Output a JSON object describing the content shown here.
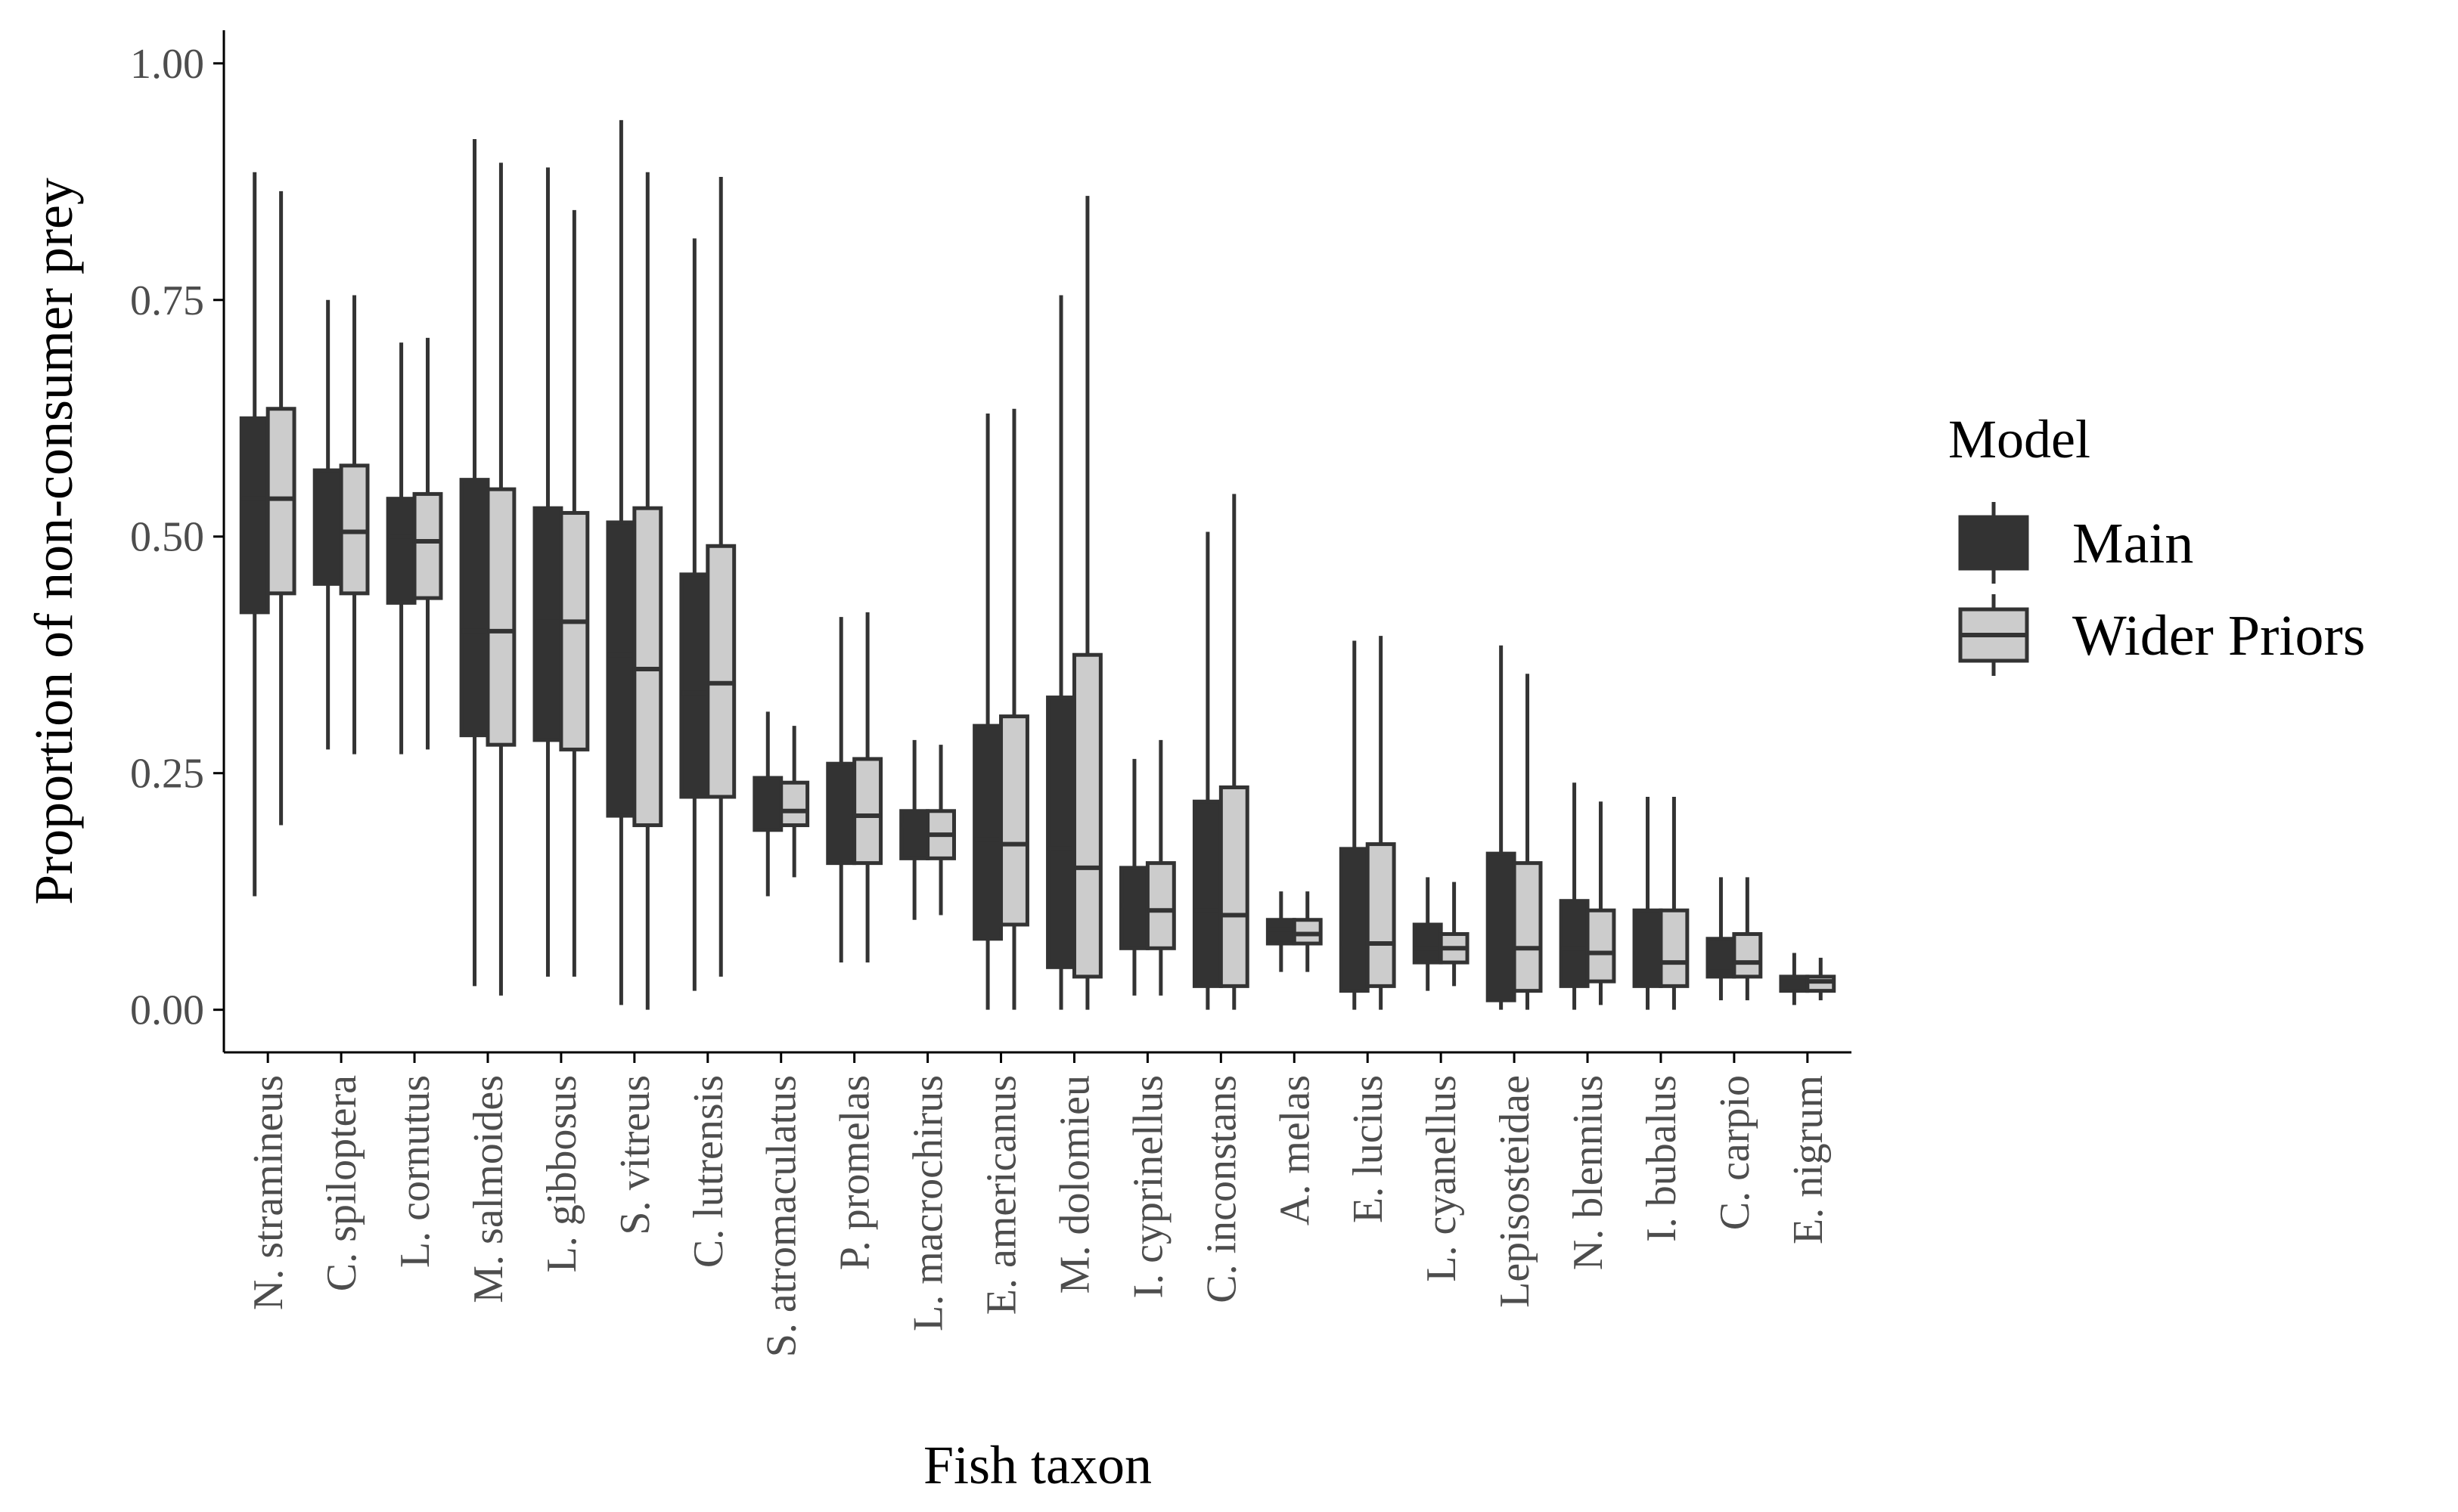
{
  "chart_data": {
    "type": "box",
    "xlabel": "Fish taxon",
    "ylabel": "Proportion of non-consumer prey",
    "ylim": [
      -0.045,
      1.035
    ],
    "yticks": [
      "0.00",
      "0.25",
      "0.50",
      "0.75",
      "1.00"
    ],
    "ytick_values": [
      0,
      0.25,
      0.5,
      0.75,
      1.0
    ],
    "legend": {
      "title": "Model",
      "position": "right"
    },
    "colors": {
      "Main": "#333333",
      "Wider Priors": "#cccccc",
      "outline": "#333333"
    },
    "categories": [
      "N. stramineus",
      "C. spiloptera",
      "L. cornutus",
      "M. salmoides",
      "L. gibbosus",
      "S. vitreus",
      "C. lutrensis",
      "S. atromaculatus",
      "P. promelas",
      "L. macrochirus",
      "E. americanus",
      "M. dolomieu",
      "I. cyprinellus",
      "C. inconstans",
      "A. melas",
      "E. lucius",
      "L. cyanellus",
      "Lepisosteidae",
      "N. blennius",
      "I. bubalus",
      "C. carpio",
      "E. nigrum"
    ],
    "series": [
      {
        "name": "Main",
        "boxes": [
          {
            "min": 0.12,
            "q1": 0.42,
            "median": 0.54,
            "q3": 0.625,
            "max": 0.885
          },
          {
            "min": 0.275,
            "q1": 0.45,
            "median": 0.505,
            "q3": 0.57,
            "max": 0.75
          },
          {
            "min": 0.27,
            "q1": 0.43,
            "median": 0.5,
            "q3": 0.54,
            "max": 0.705
          },
          {
            "min": 0.025,
            "q1": 0.29,
            "median": 0.4,
            "q3": 0.56,
            "max": 0.92
          },
          {
            "min": 0.035,
            "q1": 0.285,
            "median": 0.41,
            "q3": 0.53,
            "max": 0.89
          },
          {
            "min": 0.005,
            "q1": 0.205,
            "median": 0.375,
            "q3": 0.515,
            "max": 0.94
          },
          {
            "min": 0.02,
            "q1": 0.225,
            "median": 0.335,
            "q3": 0.46,
            "max": 0.815
          },
          {
            "min": 0.12,
            "q1": 0.19,
            "median": 0.225,
            "q3": 0.245,
            "max": 0.315
          },
          {
            "min": 0.05,
            "q1": 0.155,
            "median": 0.205,
            "q3": 0.26,
            "max": 0.415
          },
          {
            "min": 0.095,
            "q1": 0.16,
            "median": 0.195,
            "q3": 0.21,
            "max": 0.285
          },
          {
            "min": 0.0,
            "q1": 0.075,
            "median": 0.18,
            "q3": 0.3,
            "max": 0.63
          },
          {
            "min": 0.0,
            "q1": 0.045,
            "median": 0.17,
            "q3": 0.33,
            "max": 0.755
          },
          {
            "min": 0.015,
            "q1": 0.065,
            "median": 0.11,
            "q3": 0.15,
            "max": 0.265
          },
          {
            "min": 0.0,
            "q1": 0.025,
            "median": 0.105,
            "q3": 0.22,
            "max": 0.505
          },
          {
            "min": 0.04,
            "q1": 0.07,
            "median": 0.085,
            "q3": 0.095,
            "max": 0.125
          },
          {
            "min": 0.0,
            "q1": 0.02,
            "median": 0.07,
            "q3": 0.17,
            "max": 0.39
          },
          {
            "min": 0.02,
            "q1": 0.05,
            "median": 0.065,
            "q3": 0.09,
            "max": 0.14
          },
          {
            "min": 0.0,
            "q1": 0.01,
            "median": 0.06,
            "q3": 0.165,
            "max": 0.385
          },
          {
            "min": 0.0,
            "q1": 0.025,
            "median": 0.065,
            "q3": 0.115,
            "max": 0.24
          },
          {
            "min": 0.0,
            "q1": 0.025,
            "median": 0.06,
            "q3": 0.105,
            "max": 0.225
          },
          {
            "min": 0.01,
            "q1": 0.035,
            "median": 0.045,
            "q3": 0.075,
            "max": 0.14
          },
          {
            "min": 0.005,
            "q1": 0.02,
            "median": 0.03,
            "q3": 0.035,
            "max": 0.06
          }
        ]
      },
      {
        "name": "Wider Priors",
        "boxes": [
          {
            "min": 0.195,
            "q1": 0.44,
            "median": 0.54,
            "q3": 0.635,
            "max": 0.865
          },
          {
            "min": 0.27,
            "q1": 0.44,
            "median": 0.505,
            "q3": 0.575,
            "max": 0.755
          },
          {
            "min": 0.275,
            "q1": 0.435,
            "median": 0.495,
            "q3": 0.545,
            "max": 0.71
          },
          {
            "min": 0.015,
            "q1": 0.28,
            "median": 0.4,
            "q3": 0.55,
            "max": 0.895
          },
          {
            "min": 0.035,
            "q1": 0.275,
            "median": 0.41,
            "q3": 0.525,
            "max": 0.845
          },
          {
            "min": 0.0,
            "q1": 0.195,
            "median": 0.36,
            "q3": 0.53,
            "max": 0.885
          },
          {
            "min": 0.035,
            "q1": 0.225,
            "median": 0.345,
            "q3": 0.49,
            "max": 0.88
          },
          {
            "min": 0.14,
            "q1": 0.195,
            "median": 0.21,
            "q3": 0.24,
            "max": 0.3
          },
          {
            "min": 0.05,
            "q1": 0.155,
            "median": 0.205,
            "q3": 0.265,
            "max": 0.42
          },
          {
            "min": 0.1,
            "q1": 0.16,
            "median": 0.185,
            "q3": 0.21,
            "max": 0.28
          },
          {
            "min": 0.0,
            "q1": 0.09,
            "median": 0.175,
            "q3": 0.31,
            "max": 0.635
          },
          {
            "min": 0.0,
            "q1": 0.035,
            "median": 0.15,
            "q3": 0.375,
            "max": 0.86
          },
          {
            "min": 0.015,
            "q1": 0.065,
            "median": 0.105,
            "q3": 0.155,
            "max": 0.285
          },
          {
            "min": 0.0,
            "q1": 0.025,
            "median": 0.1,
            "q3": 0.235,
            "max": 0.545
          },
          {
            "min": 0.04,
            "q1": 0.07,
            "median": 0.08,
            "q3": 0.095,
            "max": 0.125
          },
          {
            "min": 0.0,
            "q1": 0.025,
            "median": 0.07,
            "q3": 0.175,
            "max": 0.395
          },
          {
            "min": 0.025,
            "q1": 0.05,
            "median": 0.065,
            "q3": 0.08,
            "max": 0.135
          },
          {
            "min": 0.0,
            "q1": 0.02,
            "median": 0.065,
            "q3": 0.155,
            "max": 0.355
          },
          {
            "min": 0.005,
            "q1": 0.03,
            "median": 0.06,
            "q3": 0.105,
            "max": 0.22
          },
          {
            "min": 0.0,
            "q1": 0.025,
            "median": 0.05,
            "q3": 0.105,
            "max": 0.225
          },
          {
            "min": 0.01,
            "q1": 0.035,
            "median": 0.05,
            "q3": 0.08,
            "max": 0.14
          },
          {
            "min": 0.01,
            "q1": 0.02,
            "median": 0.03,
            "q3": 0.035,
            "max": 0.055
          }
        ]
      }
    ]
  }
}
